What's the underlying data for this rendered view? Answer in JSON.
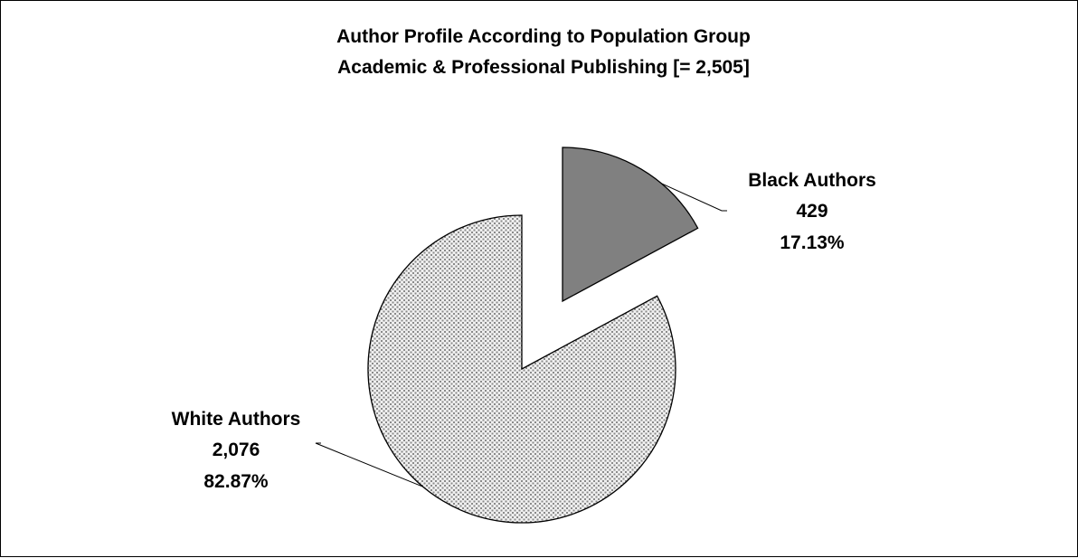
{
  "chart_data": {
    "type": "pie",
    "title": "Author Profile According to Population Group",
    "subtitle": "Academic & Professional Publishing [= 2,505]",
    "total": 2505,
    "exploded": true,
    "slices": [
      {
        "name": "Black Authors",
        "value": 429,
        "value_label": "429",
        "percent": 17.13,
        "percent_label": "17.13%",
        "color": "#808080",
        "fill_pattern": "solid"
      },
      {
        "name": "White Authors",
        "value": 2076,
        "value_label": "2,076",
        "percent": 82.87,
        "percent_label": "82.87%",
        "color": "#c0c0c0",
        "fill_pattern": "dotted"
      }
    ]
  }
}
